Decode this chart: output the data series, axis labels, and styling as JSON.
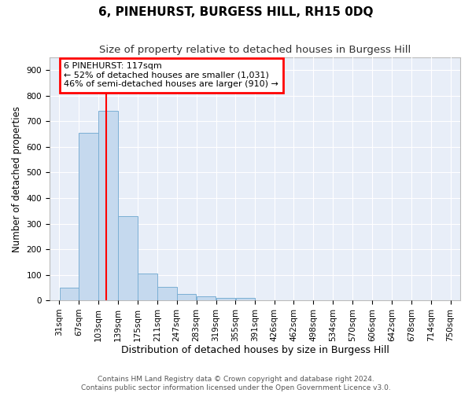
{
  "title": "6, PINEHURST, BURGESS HILL, RH15 0DQ",
  "subtitle": "Size of property relative to detached houses in Burgess Hill",
  "xlabel": "Distribution of detached houses by size in Burgess Hill",
  "ylabel": "Number of detached properties",
  "bar_color": "#c5d9ee",
  "bar_edge_color": "#7bafd4",
  "fig_bg_color": "#ffffff",
  "ax_bg_color": "#e8eef8",
  "grid_color": "#ffffff",
  "annotation_text_line1": "6 PINEHURST: 117sqm",
  "annotation_text_line2": "← 52% of detached houses are smaller (1,031)",
  "annotation_text_line3": "46% of semi-detached houses are larger (910) →",
  "red_line_x": 117,
  "bin_edges": [
    31,
    67,
    103,
    139,
    175,
    211,
    247,
    283,
    319,
    355,
    391,
    426,
    462,
    498,
    534,
    570,
    606,
    642,
    678,
    714,
    750
  ],
  "bar_heights": [
    50,
    655,
    740,
    330,
    105,
    52,
    25,
    15,
    10,
    10,
    0,
    0,
    0,
    0,
    0,
    0,
    0,
    0,
    0,
    0
  ],
  "ylim": [
    0,
    950
  ],
  "yticks": [
    0,
    100,
    200,
    300,
    400,
    500,
    600,
    700,
    800,
    900
  ],
  "footer_line1": "Contains HM Land Registry data © Crown copyright and database right 2024.",
  "footer_line2": "Contains public sector information licensed under the Open Government Licence v3.0.",
  "title_fontsize": 11,
  "subtitle_fontsize": 9.5,
  "xlabel_fontsize": 9,
  "ylabel_fontsize": 8.5,
  "tick_fontsize": 7.5,
  "footer_fontsize": 6.5,
  "annot_fontsize": 8
}
